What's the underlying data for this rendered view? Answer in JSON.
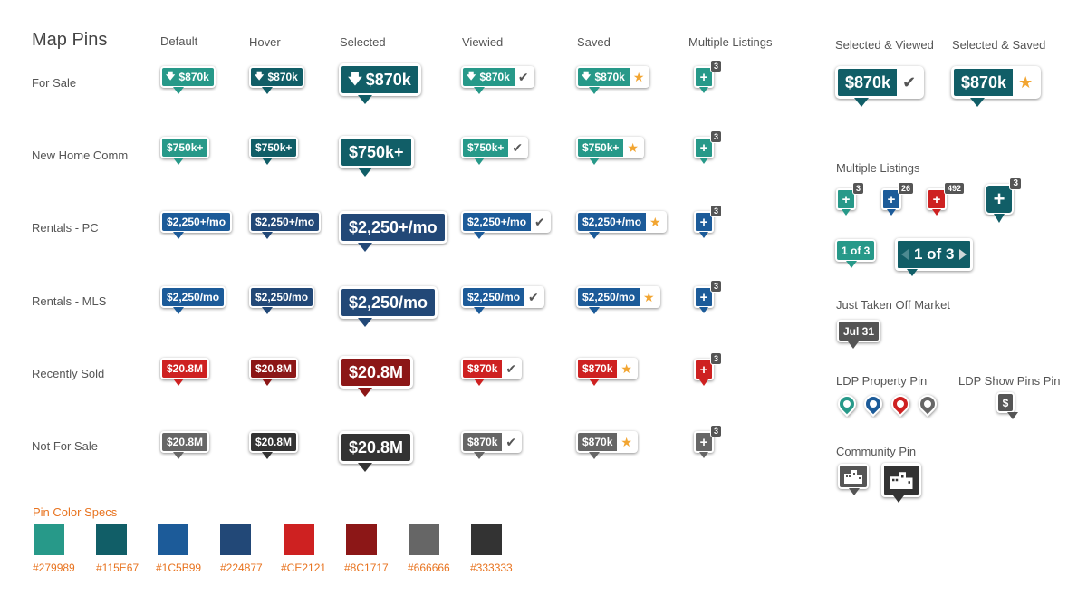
{
  "title": "Map Pins",
  "columns": [
    "Default",
    "Hover",
    "Selected",
    "Viewied",
    "Saved",
    "Multiple Listings"
  ],
  "right_columns": [
    "Selected & Viewed",
    "Selected & Saved"
  ],
  "rows": [
    {
      "label": "For Sale",
      "price": "$870k",
      "alt_price": "$870k",
      "arrow": true,
      "default": "#279989",
      "hover": "#115E67"
    },
    {
      "label": "New Home Comm",
      "price": "$750k+",
      "alt_price": "$750k+",
      "arrow": false,
      "default": "#279989",
      "hover": "#115E67"
    },
    {
      "label": "Rentals - PC",
      "price": "$2,250+/mo",
      "alt_price": "$2,250+/mo",
      "arrow": false,
      "default": "#1C5B99",
      "hover": "#224877"
    },
    {
      "label": "Rentals - MLS",
      "price": "$2,250/mo",
      "alt_price": "$2,250/mo",
      "arrow": false,
      "default": "#1C5B99",
      "hover": "#224877"
    },
    {
      "label": "Recently Sold",
      "price": "$20.8M",
      "alt_price": "$870k",
      "arrow": false,
      "default": "#CE2121",
      "hover": "#8C1717"
    },
    {
      "label": "Not For Sale",
      "price": "$20.8M",
      "alt_price": "$870k",
      "arrow": false,
      "default": "#666666",
      "hover": "#333333"
    }
  ],
  "multi_count": "3",
  "selected_viewed_price": "$870k",
  "selected_saved_price": "$870k",
  "multiple_listings": {
    "label": "Multiple Listings",
    "counts": [
      "3",
      "26",
      "492",
      "3"
    ],
    "page_small": "1 of 3",
    "page_large": "1 of 3"
  },
  "off_market": {
    "label": "Just Taken Off Market",
    "date": "Jul 31"
  },
  "ldp_property_pin": "LDP Property Pin",
  "ldp_show_pins": {
    "label": "LDP Show Pins Pin",
    "symbol": "$"
  },
  "community_pin": "Community Pin",
  "spec": {
    "title": "Pin Color Specs",
    "colors": [
      "#279989",
      "#115E67",
      "#1C5B99",
      "#224877",
      "#CE2121",
      "#8C1717",
      "#666666",
      "#333333"
    ]
  },
  "icons": {
    "check": "checkmark-icon",
    "star": "star-icon",
    "arrow": "down-arrow-icon",
    "plus": "plus-icon",
    "community": "buildings-icon"
  }
}
